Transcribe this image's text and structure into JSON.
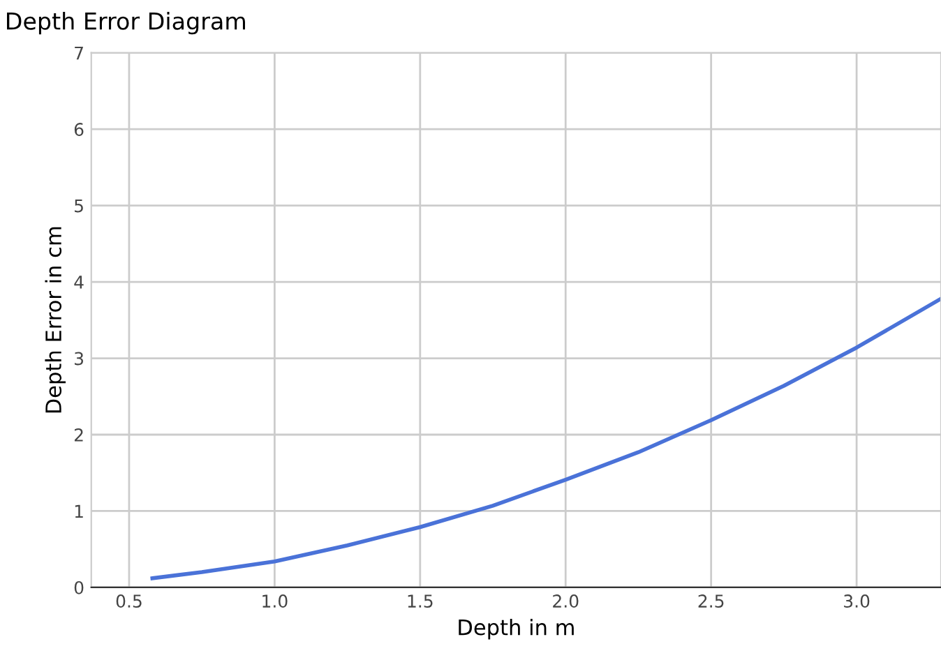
{
  "chart_data": {
    "type": "line",
    "title": "Depth Error Diagram",
    "xlabel": "Depth in m",
    "ylabel": "Depth Error in cm",
    "x": [
      0.58,
      0.75,
      1.0,
      1.25,
      1.5,
      1.75,
      2.0,
      2.25,
      2.5,
      2.75,
      3.0,
      3.29
    ],
    "series": [
      {
        "color": "#4a72d8",
        "values": [
          0.12,
          0.2,
          0.34,
          0.55,
          0.79,
          1.07,
          1.41,
          1.77,
          2.19,
          2.64,
          3.14,
          3.78
        ]
      }
    ],
    "xlim": [
      0.37,
      3.29
    ],
    "ylim": [
      0,
      7
    ],
    "xticks": [
      {
        "value": 0.5,
        "label": "0.5"
      },
      {
        "value": 1.0,
        "label": "1.0"
      },
      {
        "value": 1.5,
        "label": "1.5"
      },
      {
        "value": 2.0,
        "label": "2.0"
      },
      {
        "value": 2.5,
        "label": "2.5"
      },
      {
        "value": 3.0,
        "label": "3.0"
      }
    ],
    "yticks": [
      0,
      1,
      2,
      3,
      4,
      5,
      6,
      7
    ],
    "grid": true,
    "marker": "none",
    "line_style": "solid"
  }
}
